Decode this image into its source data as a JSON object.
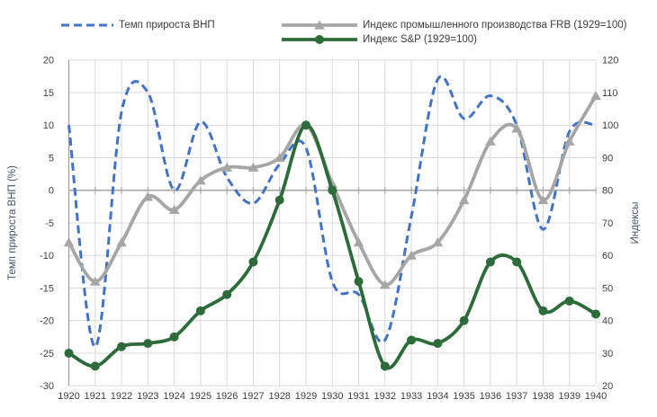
{
  "chart_data": {
    "type": "line",
    "title": "",
    "x_years": [
      1920,
      1921,
      1922,
      1923,
      1924,
      1925,
      1926,
      1927,
      1928,
      1929,
      1930,
      1931,
      1932,
      1933,
      1934,
      1935,
      1936,
      1937,
      1938,
      1939,
      1940
    ],
    "series": [
      {
        "name": "Темп прироста ВНП",
        "axis": "left",
        "color": "#4472c4",
        "line_style": "dashed",
        "marker": "none",
        "values": [
          10,
          -24,
          12,
          15,
          0,
          10.5,
          2,
          -2,
          4,
          6.5,
          -14,
          -16,
          -23,
          -4,
          17,
          11,
          14.5,
          10,
          -6,
          9,
          10
        ]
      },
      {
        "name": "Индекс промышленного производства FRB (1929=100)",
        "axis": "right",
        "color": "#a6a6a6",
        "line_style": "solid",
        "marker": "triangle",
        "values": [
          64,
          52,
          64,
          78,
          74,
          83,
          87,
          87,
          90,
          100,
          82,
          64,
          51,
          60,
          64,
          77,
          95,
          99,
          77,
          95,
          109
        ]
      },
      {
        "name": "Индекс S&P (1929=100)",
        "axis": "right",
        "color": "#2e6b3a",
        "line_style": "solid",
        "marker": "circle",
        "values": [
          30,
          26,
          32,
          33,
          35,
          43,
          48,
          58,
          77,
          100,
          80,
          52,
          26,
          34,
          33,
          40,
          58,
          58,
          43,
          46,
          42
        ]
      }
    ],
    "left_axis": {
      "title": "Темп прироста ВНП (%)",
      "min": -30,
      "max": 20,
      "step": 5,
      "ticks": [
        20,
        15,
        10,
        5,
        0,
        -5,
        -10,
        -15,
        -20,
        -25,
        -30
      ]
    },
    "right_axis": {
      "title": "Индексы",
      "min": 20,
      "max": 120,
      "step": 10,
      "ticks": [
        120,
        110,
        100,
        90,
        80,
        70,
        60,
        50,
        40,
        30,
        20
      ]
    },
    "x_axis": {
      "ticks": [
        "1920",
        "1921",
        "1922",
        "1923",
        "1924",
        "1925",
        "1926",
        "1927",
        "1928",
        "1929",
        "1930",
        "1931",
        "1932",
        "1933",
        "1934",
        "1935",
        "1936",
        "1937",
        "1938",
        "1939",
        "1940"
      ]
    },
    "grid": true,
    "legend_position": "top",
    "colors": {
      "grid": "#d9d9d9",
      "zero_line": "#a6a6a6",
      "tick_text": "#404040",
      "axis_title_text": "#44546a",
      "background": "#ffffff"
    }
  }
}
